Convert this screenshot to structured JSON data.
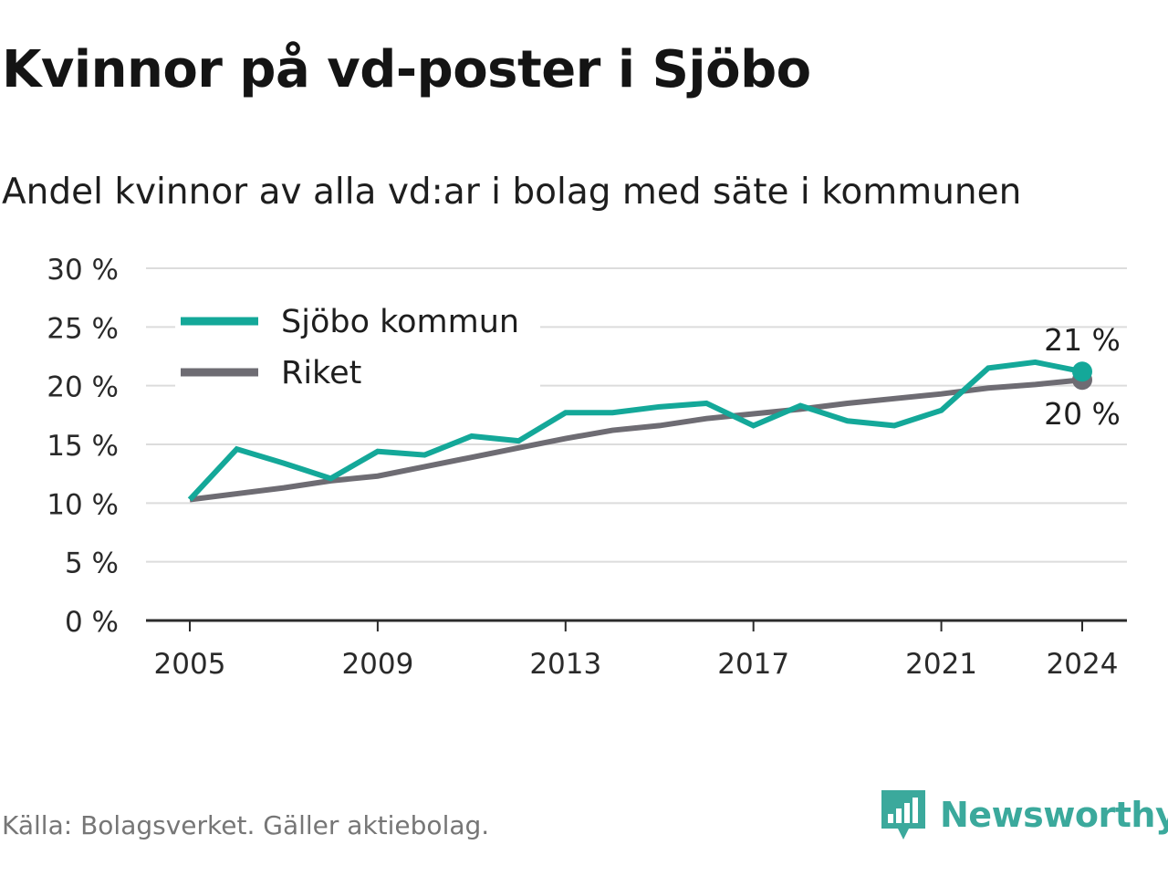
{
  "title": "Kvinnor på vd-poster i Sjöbo",
  "subtitle": "Andel kvinnor av alla vd:ar i bolag med säte i kommunen",
  "source": "Källa: Bolagsverket. Gäller aktiebolag.",
  "brand": {
    "name": "Newsworthy",
    "icon": "newsworthy-logo-icon",
    "color": "#3ba99c"
  },
  "chart_data": {
    "type": "line",
    "x": [
      2005,
      2006,
      2007,
      2008,
      2009,
      2010,
      2011,
      2012,
      2013,
      2014,
      2015,
      2016,
      2017,
      2018,
      2019,
      2020,
      2021,
      2022,
      2023,
      2024
    ],
    "x_tick_labels": [
      "2005",
      "2009",
      "2013",
      "2017",
      "2021",
      "2024"
    ],
    "y_tick_labels": [
      "0 %",
      "5 %",
      "10 %",
      "15 %",
      "20 %",
      "25 %",
      "30 %"
    ],
    "ylim": [
      0,
      30
    ],
    "grid": true,
    "legend_position": "top-left",
    "series": [
      {
        "name": "Sjöbo kommun",
        "color": "#14a899",
        "values": [
          10.3,
          14.6,
          13.4,
          12.1,
          14.4,
          14.1,
          15.7,
          15.3,
          17.7,
          17.7,
          18.2,
          18.5,
          16.6,
          18.3,
          17.0,
          16.6,
          17.9,
          21.5,
          22.0,
          21.2
        ],
        "end_label": "21 %"
      },
      {
        "name": "Riket",
        "color": "#6e6c73",
        "values": [
          10.3,
          10.8,
          11.3,
          11.9,
          12.3,
          13.1,
          13.9,
          14.7,
          15.5,
          16.2,
          16.6,
          17.2,
          17.6,
          18.0,
          18.5,
          18.9,
          19.3,
          19.8,
          20.1,
          20.5
        ],
        "end_label": "20 %"
      }
    ]
  }
}
